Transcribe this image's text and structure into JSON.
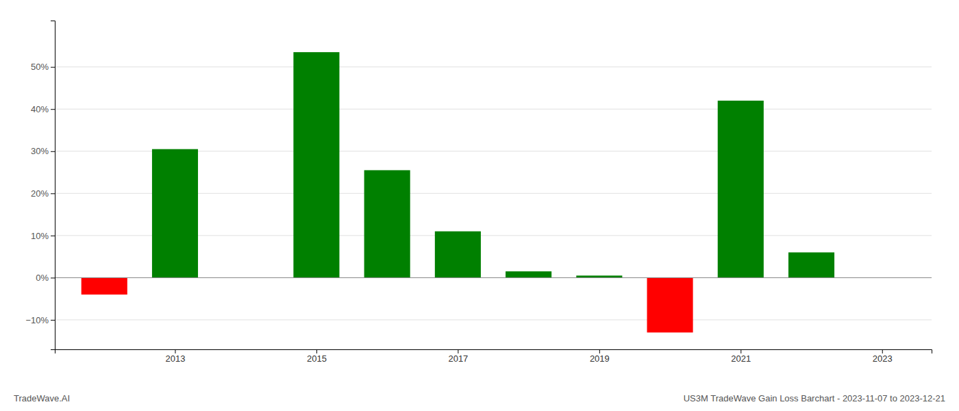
{
  "chart_data": {
    "type": "bar",
    "title": "US3M TradeWave Gain Loss Barchart - 2023-11-07 to 2023-12-21",
    "annotations": [
      "TradeWave.AI"
    ],
    "x": [
      2012,
      2013,
      2015,
      2016,
      2017,
      2018,
      2019,
      2020,
      2021,
      2022
    ],
    "values": [
      -4.0,
      30.5,
      53.5,
      25.5,
      11.0,
      1.5,
      0.5,
      -13.0,
      42.0,
      6.0
    ],
    "colors": [
      "#ff0000",
      "#008000",
      "#008000",
      "#008000",
      "#008000",
      "#008000",
      "#008000",
      "#ff0000",
      "#008000",
      "#008000"
    ],
    "xlim": [
      2011.3,
      2023.7
    ],
    "xticks": [
      2013,
      2015,
      2017,
      2019,
      2021,
      2023
    ],
    "ylim": [
      -17.0,
      61.0
    ],
    "yticks": [
      {
        "value": -10,
        "label": "−10%"
      },
      {
        "value": 0,
        "label": "0%"
      },
      {
        "value": 10,
        "label": "10%"
      },
      {
        "value": 20,
        "label": "20%"
      },
      {
        "value": 30,
        "label": "30%"
      },
      {
        "value": 40,
        "label": "40%"
      },
      {
        "value": 50,
        "label": "50%"
      }
    ],
    "grid": true
  }
}
